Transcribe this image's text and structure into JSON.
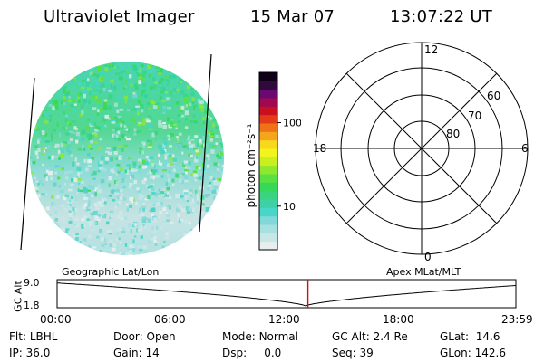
{
  "header": {
    "instrument": "Ultraviolet Imager",
    "date": "15 Mar 07",
    "time": "13:07:22 UT"
  },
  "colorbar": {
    "unit_label": "photon cm⁻²s⁻¹",
    "ticks": [
      {
        "label": "100",
        "value": 100
      },
      {
        "label": "10",
        "value": 10
      }
    ],
    "min": 3,
    "max": 400,
    "colors": [
      "#e8eeee",
      "#c8e6e6",
      "#a6e0e0",
      "#80d8d8",
      "#47d6c8",
      "#3fd0a8",
      "#3ad47f",
      "#36d85a",
      "#5ae040",
      "#8ee830",
      "#c8f020",
      "#f2f41c",
      "#f8d81c",
      "#f4a51c",
      "#ef7218",
      "#e43a18",
      "#c81020",
      "#a00850",
      "#6a0a70",
      "#300a3c",
      "#100018"
    ]
  },
  "polar": {
    "mlt_labels": {
      "top": "12",
      "left": "18",
      "right": "6",
      "bottom": "0"
    },
    "lat_labels": [
      "60",
      "70",
      "80"
    ]
  },
  "altitude_plot": {
    "left_title": "Geographic Lat/Lon",
    "right_title": "Apex MLat/MLT",
    "y_axis_label": "GC Alt",
    "y_ticks": [
      "9.0",
      "1.8"
    ],
    "x_ticks": [
      "00:00",
      "06:00",
      "12:00",
      "18:00",
      "23:59"
    ],
    "current_time_hours": 13.12,
    "marker_color": "#d01010"
  },
  "footer": {
    "row1": [
      {
        "key": "Flt:",
        "value": "LBHL"
      },
      {
        "key": "Door:",
        "value": "Open"
      },
      {
        "key": "Mode:",
        "value": "Normal"
      },
      {
        "key": "GC Alt:",
        "value": "2.4 Re"
      },
      {
        "key": "GLat:",
        "value": "14.6"
      }
    ],
    "row2": [
      {
        "key": "IP:",
        "value": "36.0"
      },
      {
        "key": "Gain:",
        "value": "14"
      },
      {
        "key": "Dsp:",
        "value": "0.0"
      },
      {
        "key": "Seq:",
        "value": "39"
      },
      {
        "key": "GLon:",
        "value": "142.6"
      }
    ]
  }
}
